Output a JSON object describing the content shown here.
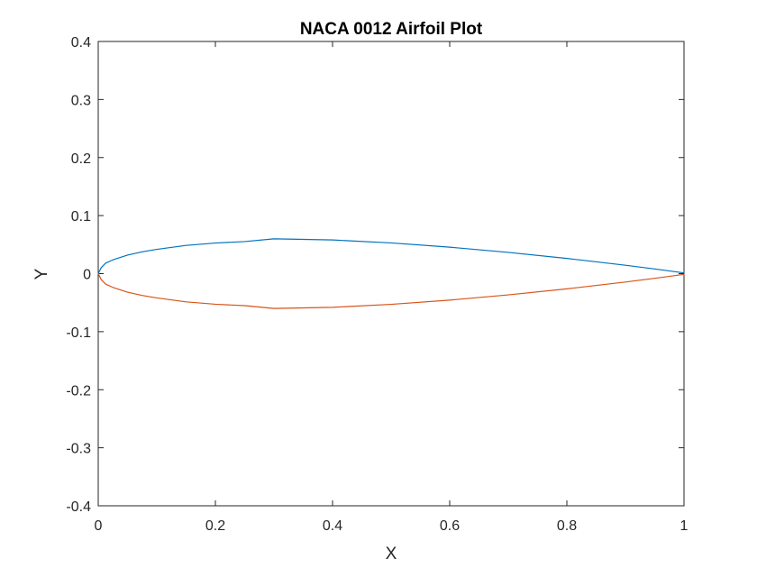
{
  "chart_data": {
    "type": "line",
    "title": "NACA 0012 Airfoil Plot",
    "xlabel": "X",
    "ylabel": "Y",
    "xlim": [
      0,
      1
    ],
    "ylim": [
      -0.4,
      0.4
    ],
    "xticks": [
      0,
      0.2,
      0.4,
      0.6,
      0.8,
      1
    ],
    "xtick_labels": [
      "0",
      "0.2",
      "0.4",
      "0.6",
      "0.8",
      "1"
    ],
    "yticks": [
      -0.4,
      -0.3,
      -0.2,
      -0.1,
      0,
      0.1,
      0.2,
      0.3,
      0.4
    ],
    "ytick_labels": [
      "-0.4",
      "-0.3",
      "-0.2",
      "-0.1",
      "0",
      "0.1",
      "0.2",
      "0.3",
      "0.4"
    ],
    "grid": false,
    "legend": "none",
    "series": [
      {
        "color": "#0072BD",
        "x": [
          0,
          0.005,
          0.0125,
          0.025,
          0.05,
          0.075,
          0.1,
          0.15,
          0.2,
          0.25,
          0.3,
          0.4,
          0.5,
          0.6,
          0.7,
          0.8,
          0.9,
          0.95,
          1.0
        ],
        "y": [
          0,
          0.0102,
          0.0179,
          0.0237,
          0.0319,
          0.0376,
          0.0418,
          0.0486,
          0.0527,
          0.0552,
          0.06,
          0.058,
          0.0529,
          0.0456,
          0.0366,
          0.0262,
          0.0145,
          0.0081,
          0.0013
        ]
      },
      {
        "color": "#D95319",
        "x": [
          0,
          0.005,
          0.0125,
          0.025,
          0.05,
          0.075,
          0.1,
          0.15,
          0.2,
          0.25,
          0.3,
          0.4,
          0.5,
          0.6,
          0.7,
          0.8,
          0.9,
          0.95,
          1.0
        ],
        "y": [
          0,
          -0.0102,
          -0.0179,
          -0.0237,
          -0.0319,
          -0.0376,
          -0.0418,
          -0.0486,
          -0.0527,
          -0.0552,
          -0.06,
          -0.058,
          -0.0529,
          -0.0456,
          -0.0366,
          -0.0262,
          -0.0145,
          -0.0081,
          -0.0013
        ]
      }
    ]
  }
}
